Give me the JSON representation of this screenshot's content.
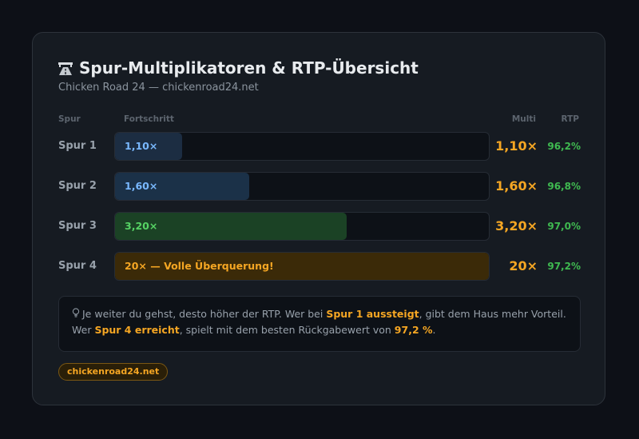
{
  "header": {
    "title": "Spur-Multiplikatoren & RTP-Übersicht",
    "subtitle": "Chicken Road 24 — chickenroad24.net",
    "icon": "road-icon"
  },
  "columns": {
    "lane": "Spur",
    "progress": "Fortschritt",
    "multi": "Multi",
    "rtp": "RTP"
  },
  "rows": [
    {
      "lane": "Spur 1",
      "bar_label": "1,10×",
      "multi": "1,10×",
      "rtp": "96,2%",
      "progress": 0.18,
      "fill_color": "#1c2d42",
      "text_color": "#79b8ff"
    },
    {
      "lane": "Spur 2",
      "bar_label": "1,60×",
      "multi": "1,60×",
      "rtp": "96,8%",
      "progress": 0.36,
      "fill_color": "#1b3148",
      "text_color": "#79b8ff"
    },
    {
      "lane": "Spur 3",
      "bar_label": "3,20×",
      "multi": "3,20×",
      "rtp": "97,0%",
      "progress": 0.62,
      "fill_color": "#1b4225",
      "text_color": "#56d364"
    },
    {
      "lane": "Spur 4",
      "bar_label": "20× — Volle Überquerung!",
      "multi": "20×",
      "rtp": "97,2%",
      "progress": 1.0,
      "fill_color": "#3b2a08",
      "text_color": "#f5a623"
    }
  ],
  "info": {
    "icon": "lightbulb-icon",
    "p1": "Je weiter du gehst, desto höher der RTP. Wer bei ",
    "h1": "Spur 1 aussteigt",
    "p2": ", gibt dem Haus mehr Vorteil. Wer ",
    "h2": "Spur 4 erreicht",
    "p3": ", spielt mit dem besten Rückgabewert von ",
    "h3": "97,2 %",
    "p4": "."
  },
  "badge": "chickenroad24.net",
  "colors": {
    "accent": "#f5a623",
    "rtp": "#3fb950",
    "background": "#0d1017",
    "card": "#161b22"
  }
}
